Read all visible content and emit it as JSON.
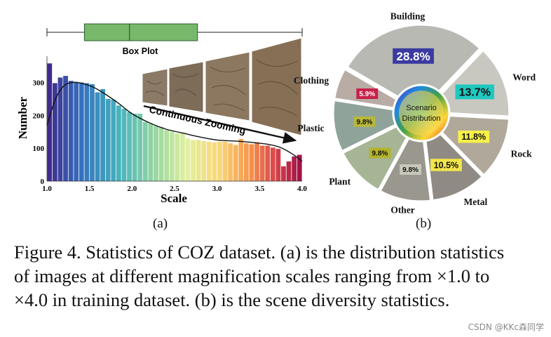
{
  "chart_data": [
    {
      "type": "bar",
      "panel": "(a)",
      "boxplot_label": "Box Plot",
      "boxplot": {
        "whisker_low": 1.0,
        "q1": 1.44,
        "median": 1.97,
        "q3": 2.77,
        "whisker_high": 4.0
      },
      "xlabel": "Scale",
      "ylabel": "Number",
      "xlim": [
        1.0,
        4.0
      ],
      "ylim": [
        0,
        380
      ],
      "xticks": [
        "1.0",
        "1.5",
        "2.0",
        "2.5",
        "3.0",
        "3.5",
        "4.0"
      ],
      "yticks": [
        "0",
        "100",
        "200",
        "300"
      ],
      "bin_width": 0.0625,
      "bin_start": 1.0,
      "values": [
        358,
        298,
        315,
        320,
        305,
        300,
        300,
        298,
        295,
        270,
        280,
        250,
        248,
        230,
        220,
        210,
        205,
        205,
        180,
        175,
        168,
        165,
        155,
        150,
        145,
        145,
        130,
        125,
        125,
        122,
        120,
        118,
        120,
        120,
        115,
        110,
        128,
        115,
        112,
        118,
        108,
        108,
        102,
        98,
        45,
        60,
        75,
        80
      ],
      "fit_curve": {
        "x": [
          1.0,
          1.1,
          1.2,
          1.3,
          1.4,
          1.55,
          1.7,
          1.85,
          2.0,
          2.2,
          2.4,
          2.6,
          2.8,
          3.0,
          3.2,
          3.4,
          3.6,
          3.75,
          3.9,
          4.0
        ],
        "y": [
          170,
          250,
          290,
          300,
          298,
          285,
          262,
          235,
          205,
          178,
          158,
          146,
          134,
          125,
          122,
          118,
          112,
          102,
          80,
          60
        ]
      },
      "annotation": "Continuous Zooming"
    },
    {
      "type": "pie",
      "panel": "(b)",
      "center_label_line1": "Scenario",
      "center_label_line2": "Distribution",
      "slices": [
        {
          "label": "Building",
          "value": 28.8,
          "display": "28.8%"
        },
        {
          "label": "Word",
          "value": 13.7,
          "display": "13.7%"
        },
        {
          "label": "Rock",
          "value": 11.8,
          "display": "11.8%"
        },
        {
          "label": "Metal",
          "value": 10.5,
          "display": "10.5%"
        },
        {
          "label": "Other",
          "value": 9.8,
          "display": "9.8%"
        },
        {
          "label": "Plant",
          "value": 9.8,
          "display": "9.8%"
        },
        {
          "label": "Plastic",
          "value": 9.8,
          "display": "9.8%"
        },
        {
          "label": "Clothing",
          "value": 5.9,
          "display": "5.9%"
        }
      ]
    }
  ],
  "labels": {
    "panel_a": "(a)",
    "panel_b": "(b)"
  },
  "caption": {
    "line1": "Figure 4. Statistics of COZ dataset. (a) is the distribution statistics",
    "line2": "of images at different magnification scales ranging from ×1.0 to",
    "line3": "×4.0 in training dataset. (b) is the scene diversity statistics."
  },
  "watermark": "CSDN @KKc森同学"
}
